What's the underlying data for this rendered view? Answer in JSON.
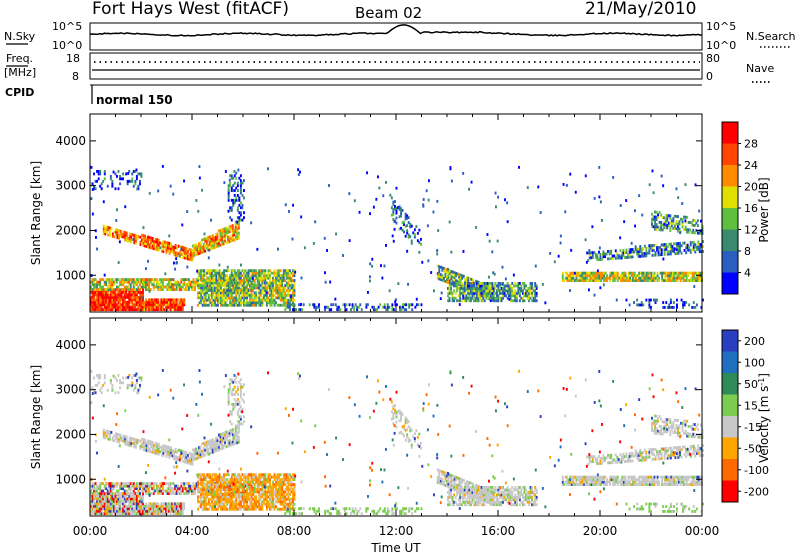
{
  "header": {
    "station": "Fort Hays West (fitACF)",
    "beam": "Beam 02",
    "date": "21/May/2010"
  },
  "strip_labels": {
    "nsky": "N.Sky",
    "nsky_ticks": [
      "10^5",
      "10^0"
    ],
    "nsearch": "N.Search",
    "nsearch_ticks": [
      "10^5",
      "10^0"
    ],
    "freq": "Freq.",
    "freq_unit": "[MHz]",
    "freq_ticks": [
      "18",
      "8"
    ],
    "nave": "Nave",
    "nave_ticks": [
      "80",
      "0"
    ],
    "cpid": "CPID",
    "cpid_value": "normal 150"
  },
  "colors": {
    "power_scale": [
      "#0000ff",
      "#2a5fbf",
      "#3a8a6e",
      "#5fbf3f",
      "#e0e000",
      "#ff8c00",
      "#ff4500",
      "#ff0000"
    ],
    "velocity_scale": [
      "#2a3fbf",
      "#1f6fbf",
      "#2e8b57",
      "#7ccd4f",
      "#c8c8c8",
      "#ffa500",
      "#ff6a00",
      "#ff0000"
    ]
  },
  "chart_data": [
    {
      "type": "heatmap",
      "id": "power",
      "ylabel": "Slant Range [km]",
      "yticks": [
        "1000",
        "2000",
        "3000",
        "4000"
      ],
      "ylim": [
        180,
        4600
      ],
      "xlim": [
        0,
        24
      ],
      "xticks": [
        "00:00",
        "04:00",
        "08:00",
        "12:00",
        "16:00",
        "20:00",
        "00:00"
      ],
      "colorbar_label": "Power [dB]",
      "colorbar_ticks": [
        "4",
        "8",
        "12",
        "16",
        "20",
        "24",
        "28"
      ],
      "colorbar_range": [
        0,
        32
      ]
    },
    {
      "type": "heatmap",
      "id": "velocity",
      "ylabel": "Slant Range [km]",
      "yticks": [
        "1000",
        "2000",
        "3000",
        "4000"
      ],
      "ylim": [
        180,
        4600
      ],
      "xlim": [
        0,
        24
      ],
      "xticks": [
        "00:00",
        "04:00",
        "08:00",
        "12:00",
        "16:00",
        "20:00",
        "00:00"
      ],
      "xlabel": "Time UT",
      "colorbar_label": "Velocity [m s",
      "colorbar_label_exp": "-1",
      "colorbar_label_close": "]",
      "colorbar_ticks": [
        "200",
        "100",
        "50",
        "15",
        "-15",
        "-50",
        "-100",
        "-200"
      ]
    }
  ]
}
